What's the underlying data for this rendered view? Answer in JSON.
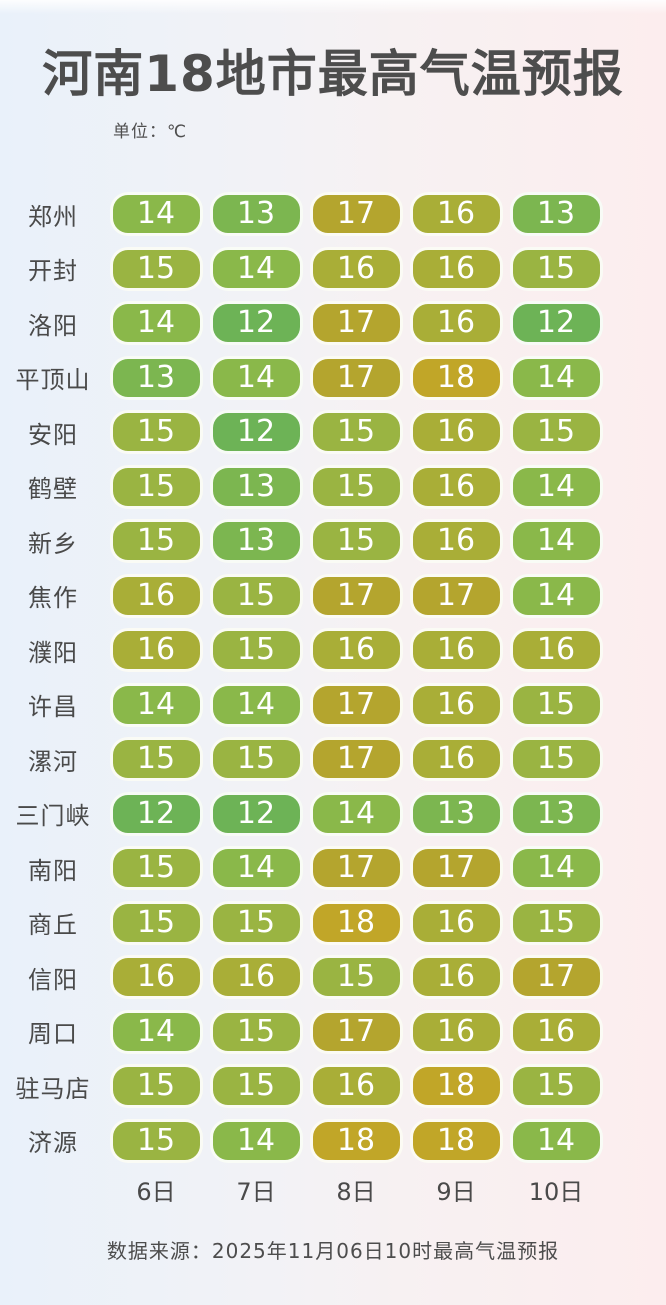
{
  "title": "河南18地市最高气温预报",
  "unit_label": "单位：℃",
  "source": "数据来源：2025年11月06日10时最高气温预报",
  "temp_colors": {
    "12": "#6db356",
    "13": "#7cb650",
    "14": "#8ab84a",
    "15": "#9ab442",
    "16": "#a9ae37",
    "17": "#b4a52e",
    "18": "#c1a628"
  },
  "chart_data": {
    "type": "heatmap",
    "title": "河南18地市最高气温预报",
    "unit": "℃",
    "x_labels": [
      "6日",
      "7日",
      "8日",
      "9日",
      "10日"
    ],
    "value_range": [
      12,
      18
    ],
    "rows": [
      {
        "city": "郑州",
        "values": [
          14,
          13,
          17,
          16,
          13
        ]
      },
      {
        "city": "开封",
        "values": [
          15,
          14,
          16,
          16,
          15
        ]
      },
      {
        "city": "洛阳",
        "values": [
          14,
          12,
          17,
          16,
          12
        ]
      },
      {
        "city": "平顶山",
        "values": [
          13,
          14,
          17,
          18,
          14
        ]
      },
      {
        "city": "安阳",
        "values": [
          15,
          12,
          15,
          16,
          15
        ]
      },
      {
        "city": "鹤壁",
        "values": [
          15,
          13,
          15,
          16,
          14
        ]
      },
      {
        "city": "新乡",
        "values": [
          15,
          13,
          15,
          16,
          14
        ]
      },
      {
        "city": "焦作",
        "values": [
          16,
          15,
          17,
          17,
          14
        ]
      },
      {
        "city": "濮阳",
        "values": [
          16,
          15,
          16,
          16,
          16
        ]
      },
      {
        "city": "许昌",
        "values": [
          14,
          14,
          17,
          16,
          15
        ]
      },
      {
        "city": "漯河",
        "values": [
          15,
          15,
          17,
          16,
          15
        ]
      },
      {
        "city": "三门峡",
        "values": [
          12,
          12,
          14,
          13,
          13
        ]
      },
      {
        "city": "南阳",
        "values": [
          15,
          14,
          17,
          17,
          14
        ]
      },
      {
        "city": "商丘",
        "values": [
          15,
          15,
          18,
          16,
          15
        ]
      },
      {
        "city": "信阳",
        "values": [
          16,
          16,
          15,
          16,
          17
        ]
      },
      {
        "city": "周口",
        "values": [
          14,
          15,
          17,
          16,
          16
        ]
      },
      {
        "city": "驻马店",
        "values": [
          15,
          15,
          16,
          18,
          15
        ]
      },
      {
        "city": "济源",
        "values": [
          15,
          14,
          18,
          18,
          14
        ]
      }
    ],
    "source": "数据来源：2025年11月06日10时最高气温预报"
  }
}
